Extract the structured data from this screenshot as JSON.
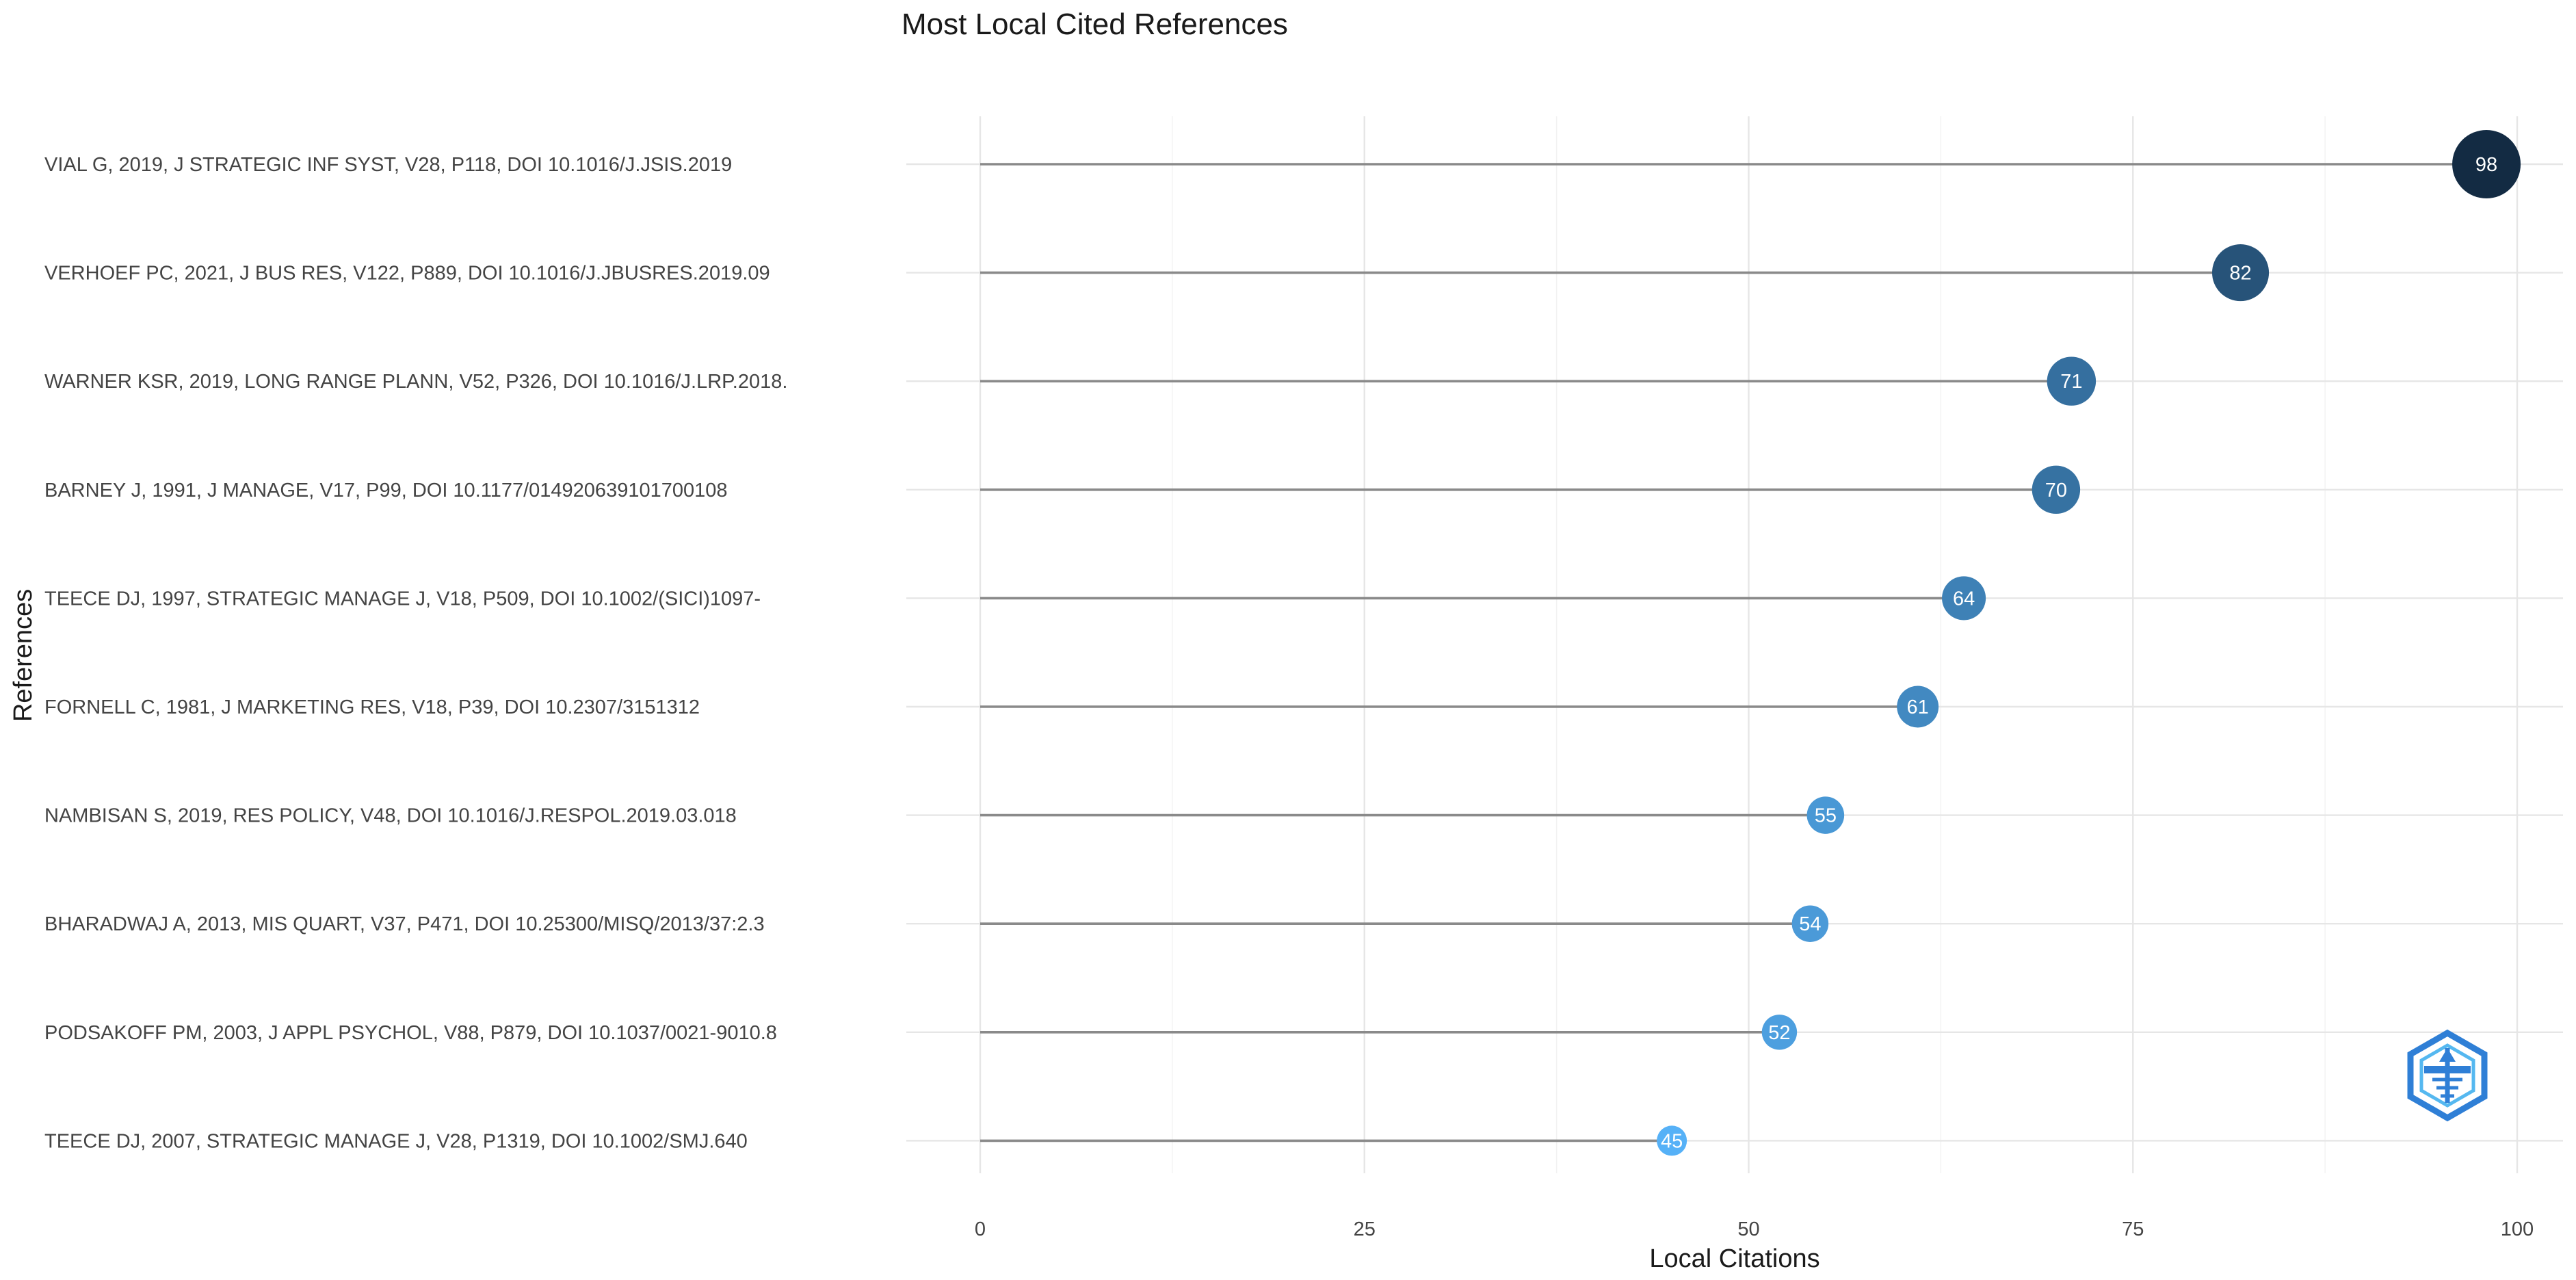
{
  "chart_data": {
    "type": "lollipop",
    "title": "Most Local Cited References",
    "xlabel": "Local Citations",
    "ylabel": "References",
    "xlim": [
      0,
      100
    ],
    "x_ticks": [
      0,
      25,
      50,
      75,
      100
    ],
    "x_tick_labels": [
      "0",
      "25",
      "50",
      "75",
      "100"
    ],
    "grid": true,
    "categories": [
      "VIAL G, 2019, J STRATEGIC INF SYST, V28, P118, DOI 10.1016/J.JSIS.2019",
      "VERHOEF PC, 2021, J BUS RES, V122, P889, DOI 10.1016/J.JBUSRES.2019.09",
      "WARNER KSR, 2019, LONG RANGE PLANN, V52, P326, DOI 10.1016/J.LRP.2018.",
      "BARNEY J, 1991, J MANAGE, V17, P99, DOI 10.1177/014920639101700108",
      "TEECE DJ, 1997, STRATEGIC MANAGE J, V18, P509, DOI 10.1002/(SICI)1097-",
      "FORNELL C, 1981, J MARKETING RES, V18, P39, DOI 10.2307/3151312",
      "NAMBISAN S, 2019, RES POLICY, V48, DOI 10.1016/J.RESPOL.2019.03.018",
      "BHARADWAJ A, 2013, MIS QUART, V37, P471, DOI 10.25300/MISQ/2013/37:2.3",
      "PODSAKOFF PM, 2003, J APPL PSYCHOL, V88, P879, DOI 10.1037/0021-9010.8",
      "TEECE DJ, 2007, STRATEGIC MANAGE J, V28, P1319, DOI 10.1002/SMJ.640"
    ],
    "values": [
      98,
      82,
      71,
      70,
      64,
      61,
      55,
      54,
      52,
      45
    ],
    "data_labels": [
      "98",
      "82",
      "71",
      "70",
      "64",
      "61",
      "55",
      "54",
      "52",
      "45"
    ],
    "colors": {
      "low": "#56B1F7",
      "high": "#132B43",
      "stem": "#8a8a8a",
      "grid": "#e6e6e6",
      "logo": "#2f7fd6"
    },
    "logo_icon": "bibliometrix-logo-icon"
  }
}
